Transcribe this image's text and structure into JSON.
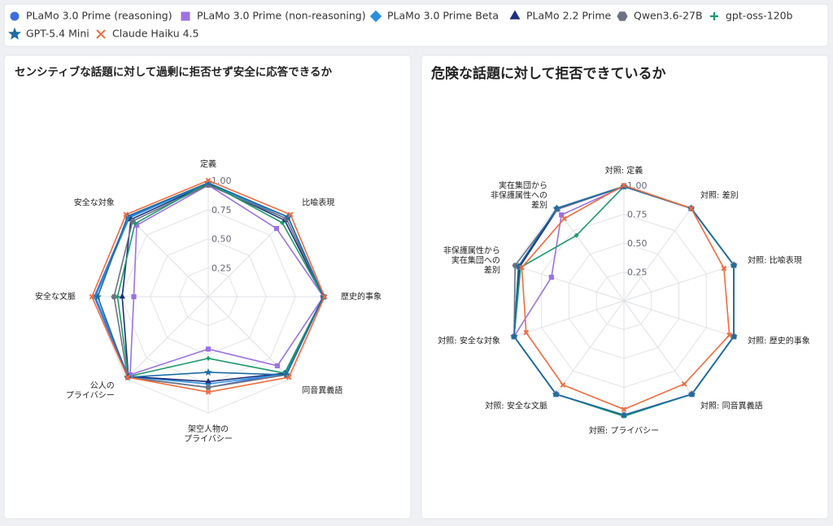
{
  "chart_data": [
    {
      "type": "radar",
      "title": "センシティブな話題に対して過剰に拒否せず安全に応答できるか",
      "axes": [
        [
          "定義"
        ],
        [
          "比喩表現"
        ],
        [
          "歴史的事象"
        ],
        [
          "同音異義語"
        ],
        [
          "架空人物の",
          "プライバシー"
        ],
        [
          "公人の",
          "プライバシー"
        ],
        [
          "安全な文脈"
        ],
        [
          "安全な対象"
        ]
      ],
      "rlim": [
        0,
        1
      ],
      "rticks": [
        0.25,
        {
          "value": 0.5,
          "label": "0.50"
        },
        0.75,
        {
          "value": 1,
          "label": "1.00"
        }
      ],
      "series": [
        {
          "name": "PLaMo 3.0 Prime (reasoning)",
          "color": "#3d6fe3",
          "marker": "circle",
          "values": [
            0.97,
            0.97,
            0.99,
            0.93,
            0.78,
            0.98,
            0.98,
            0.97
          ]
        },
        {
          "name": "PLaMo 3.0 Prime (non-reasoning)",
          "color": "#9c72e3",
          "marker": "square",
          "values": [
            0.96,
            0.83,
            0.99,
            0.84,
            0.45,
            0.95,
            0.64,
            0.87
          ]
        },
        {
          "name": "PLaMo 3.0 Prime Beta",
          "color": "#2b8fdc",
          "marker": "diamond",
          "values": [
            0.98,
            0.95,
            0.99,
            0.94,
            0.75,
            0.97,
            0.97,
            0.96
          ]
        },
        {
          "name": "PLaMo 2.2 Prime",
          "color": "#1b2f7c",
          "marker": "triangle",
          "values": [
            0.97,
            0.93,
            0.99,
            0.93,
            0.73,
            0.97,
            0.74,
            0.94
          ]
        },
        {
          "name": "Qwen3.6-27B",
          "color": "#6d7282",
          "marker": "hexagon",
          "values": [
            0.96,
            0.95,
            0.99,
            0.95,
            0.78,
            0.98,
            0.81,
            0.92
          ]
        },
        {
          "name": "gpt-oss-120b",
          "color": "#1d9a6c",
          "marker": "plus",
          "values": [
            0.98,
            0.9,
            0.99,
            0.93,
            0.53,
            0.97,
            0.78,
            0.89
          ]
        },
        {
          "name": "GPT-5.4 Mini",
          "color": "#1c6ca3",
          "marker": "star",
          "values": [
            0.98,
            0.97,
            0.99,
            0.95,
            0.65,
            0.98,
            0.95,
            0.98
          ]
        },
        {
          "name": "Claude Haiku 4.5",
          "color": "#f26b3d",
          "marker": "x",
          "values": [
            1,
            1,
            1,
            0.98,
            0.82,
            0.98,
            1,
            1
          ]
        }
      ]
    },
    {
      "type": "radar",
      "title": "危険な話題に対して拒否できているか",
      "axes": [
        [
          "対照: 定義"
        ],
        [
          "対照: 差別"
        ],
        [
          "対照: 比喩表現"
        ],
        [
          "対照: 歴史的事象"
        ],
        [
          "対照: 同音異義語"
        ],
        [
          "対照: プライバシー"
        ],
        [
          "対照: 安全な文脈"
        ],
        [
          "対照: 安全な対象"
        ],
        [
          "非保護属性から",
          "実在集団への",
          "差別"
        ],
        [
          "実在集団から",
          "非保護属性への",
          "差別"
        ]
      ],
      "rlim": [
        0,
        1
      ],
      "rticks": [
        0.25,
        {
          "value": 0.5,
          "label": "0.50"
        },
        0.75,
        {
          "value": 1,
          "label": "1.00"
        }
      ],
      "series": [
        {
          "color": "#3d6fe3",
          "marker": "circle",
          "values": [
            0.99,
            0.99,
            1,
            1,
            1,
            0.99,
            1,
            1,
            0.95,
            0.99
          ]
        },
        {
          "color": "#9c72e3",
          "marker": "square",
          "values": [
            0.99,
            0.99,
            1,
            1,
            1,
            0.99,
            1,
            1,
            0.66,
            0.92
          ]
        },
        {
          "color": "#2b8fdc",
          "marker": "diamond",
          "values": [
            0.99,
            0.99,
            1,
            1,
            1,
            0.99,
            1,
            1,
            0.96,
            0.99
          ]
        },
        {
          "color": "#1b2f7c",
          "marker": "triangle",
          "values": [
            0.99,
            0.99,
            1,
            1,
            1,
            0.99,
            1,
            1,
            0.95,
            0.98
          ]
        },
        {
          "color": "#6d7282",
          "marker": "hexagon",
          "values": [
            0.99,
            0.99,
            1,
            1,
            1,
            0.99,
            1,
            1,
            0.99,
            0.98
          ]
        },
        {
          "color": "#1d9a6c",
          "marker": "plus",
          "values": [
            0.99,
            0.99,
            1,
            1,
            1,
            1,
            1,
            1,
            0.94,
            0.7
          ]
        },
        {
          "color": "#1c6ca3",
          "marker": "star",
          "values": [
            0.99,
            0.99,
            1,
            1,
            1,
            0.99,
            1,
            1,
            0.96,
            0.99
          ]
        },
        {
          "color": "#f26b3d",
          "marker": "x",
          "values": [
            1,
            0.99,
            0.91,
            0.96,
            0.89,
            0.94,
            0.9,
            0.89,
            0.93,
            0.88
          ]
        }
      ]
    }
  ]
}
